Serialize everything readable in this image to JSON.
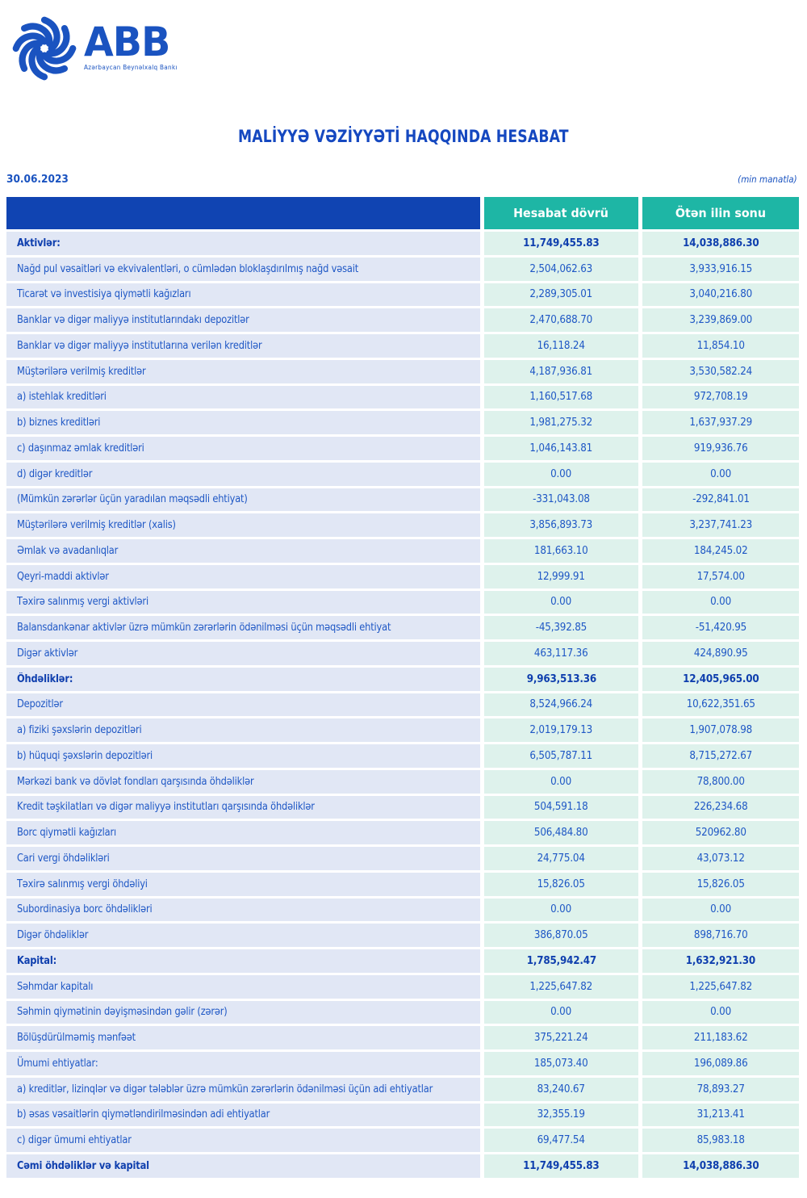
{
  "logo": {
    "brand": "ABB",
    "subtitle": "Azərbaycan Beynəlxalq Bankı"
  },
  "title": "MALİYYƏ VƏZİYYƏTİ HAQQINDA HESABAT",
  "date": "30.06.2023",
  "unit_note": "(min manatla)",
  "columns": [
    "Hesabat dövrü",
    "Ötən ilin sonu"
  ],
  "colors": {
    "brand_blue": "#1a53c0",
    "header_navy": "#1044b2",
    "header_teal": "#1eb6a5",
    "label_cell_bg": "#e1e7f5",
    "value_cell_bg": "#def2ec",
    "text_blue": "#1e57c5",
    "bold_text_blue": "#0f3fae"
  },
  "rows": [
    {
      "label": "Aktivlər:",
      "current": "11,749,455.83",
      "previous": "14,038,886.30",
      "bold": true
    },
    {
      "label": "Nağd pul vəsaitləri və  ekvivalentləri, o cümlədən bloklaşdırılmış nağd vəsait",
      "current": "2,504,062.63",
      "previous": "3,933,916.15",
      "bold": false
    },
    {
      "label": "Ticarət və investisiya qiymətli kağızları",
      "current": "2,289,305.01",
      "previous": "3,040,216.80",
      "bold": false
    },
    {
      "label": "Banklar və digər maliyyə institutlarındakı depozitlər",
      "current": "2,470,688.70",
      "previous": "3,239,869.00",
      "bold": false
    },
    {
      "label": "Banklar və digər maliyyə institutlarına verilən kreditlər",
      "current": "16,118.24",
      "previous": "11,854.10",
      "bold": false
    },
    {
      "label": "Müştərilərə verilmiş kreditlər",
      "current": "4,187,936.81",
      "previous": "3,530,582.24",
      "bold": false
    },
    {
      "label": "a) istehlak kreditləri",
      "current": "1,160,517.68",
      "previous": "972,708.19",
      "bold": false
    },
    {
      "label": "b) biznes kreditləri",
      "current": "1,981,275.32",
      "previous": "1,637,937.29",
      "bold": false
    },
    {
      "label": "c) daşınmaz əmlak kreditləri",
      "current": "1,046,143.81",
      "previous": "919,936.76",
      "bold": false
    },
    {
      "label": "d) digər kreditlər",
      "current": "0.00",
      "previous": "0.00",
      "bold": false
    },
    {
      "label": "(Mümkün zərərlər üçün yaradılan məqsədli ehtiyat)",
      "current": "-331,043.08",
      "previous": "-292,841.01",
      "bold": false
    },
    {
      "label": "Müştərilərə verilmiş kreditlər (xalis)",
      "current": "3,856,893.73",
      "previous": "3,237,741.23",
      "bold": false
    },
    {
      "label": "Əmlak və avadanlıqlar",
      "current": "181,663.10",
      "previous": "184,245.02",
      "bold": false
    },
    {
      "label": "Qeyri-maddi aktivlər",
      "current": "12,999.91",
      "previous": "17,574.00",
      "bold": false
    },
    {
      "label": "Təxirə salınmış vergi aktivləri",
      "current": "0.00",
      "previous": "0.00",
      "bold": false
    },
    {
      "label": "Balansdankənar aktivlər üzrə mümkün zərərlərin ödənilməsi üçün məqsədli ehtiyat",
      "current": "-45,392.85",
      "previous": "-51,420.95",
      "bold": false
    },
    {
      "label": "Digər aktivlər",
      "current": "463,117.36",
      "previous": "424,890.95",
      "bold": false
    },
    {
      "label": "Öhdəliklər:",
      "current": "9,963,513.36",
      "previous": "12,405,965.00",
      "bold": true
    },
    {
      "label": "Depozitlər",
      "current": "8,524,966.24",
      "previous": "10,622,351.65",
      "bold": false
    },
    {
      "label": "a) fiziki şəxslərin depozitləri",
      "current": "2,019,179.13",
      "previous": "1,907,078.98",
      "bold": false
    },
    {
      "label": "b) hüquqi şəxslərin depozitləri",
      "current": "6,505,787.11",
      "previous": "8,715,272.67",
      "bold": false
    },
    {
      "label": "Mərkəzi bank və dövlət fondları qarşısında öhdəliklər",
      "current": "0.00",
      "previous": "78,800.00",
      "bold": false
    },
    {
      "label": "Kredit təşkilatları və digər maliyyə institutları qarşısında öhdəliklər",
      "current": "504,591.18",
      "previous": "226,234.68",
      "bold": false
    },
    {
      "label": "Borc qiymətli kağızları",
      "current": "506,484.80",
      "previous": "520962.80",
      "bold": false
    },
    {
      "label": "Cari vergi öhdəlikləri",
      "current": "24,775.04",
      "previous": "43,073.12",
      "bold": false
    },
    {
      "label": "Təxirə salınmış vergi öhdəliyi",
      "current": "15,826.05",
      "previous": "15,826.05",
      "bold": false
    },
    {
      "label": "Subordinasiya borc öhdəlikləri",
      "current": "0.00",
      "previous": "0.00",
      "bold": false
    },
    {
      "label": "Digər öhdəliklər",
      "current": "386,870.05",
      "previous": "898,716.70",
      "bold": false
    },
    {
      "label": "Kapital:",
      "current": "1,785,942.47",
      "previous": "1,632,921.30",
      "bold": true
    },
    {
      "label": "Səhmdar kapitalı",
      "current": "1,225,647.82",
      "previous": "1,225,647.82",
      "bold": false
    },
    {
      "label": "Səhmin qiymətinin dəyişməsindən gəlir (zərər)",
      "current": "0.00",
      "previous": "0.00",
      "bold": false
    },
    {
      "label": "Bölüşdürülməmiş mənfəət",
      "current": "375,221.24",
      "previous": "211,183.62",
      "bold": false
    },
    {
      "label": "Ümumi ehtiyatlar:",
      "current": "185,073.40",
      "previous": "196,089.86",
      "bold": false
    },
    {
      "label": "a) kreditlər, lizinqlər və digər tələblər üzrə mümkün zərərlərin ödənilməsi üçün adi ehtiyatlar",
      "current": "83,240.67",
      "previous": "78,893.27",
      "bold": false
    },
    {
      "label": "b) əsas vəsaitlərin qiymətləndirilməsindən adi ehtiyatlar",
      "current": "32,355.19",
      "previous": "31,213.41",
      "bold": false
    },
    {
      "label": "c) digər ümumi ehtiyatlar",
      "current": "69,477.54",
      "previous": "85,983.18",
      "bold": false
    },
    {
      "label": "Cəmi öhdəliklər və kapital",
      "current": "11,749,455.83",
      "previous": "14,038,886.30",
      "bold": true
    }
  ]
}
